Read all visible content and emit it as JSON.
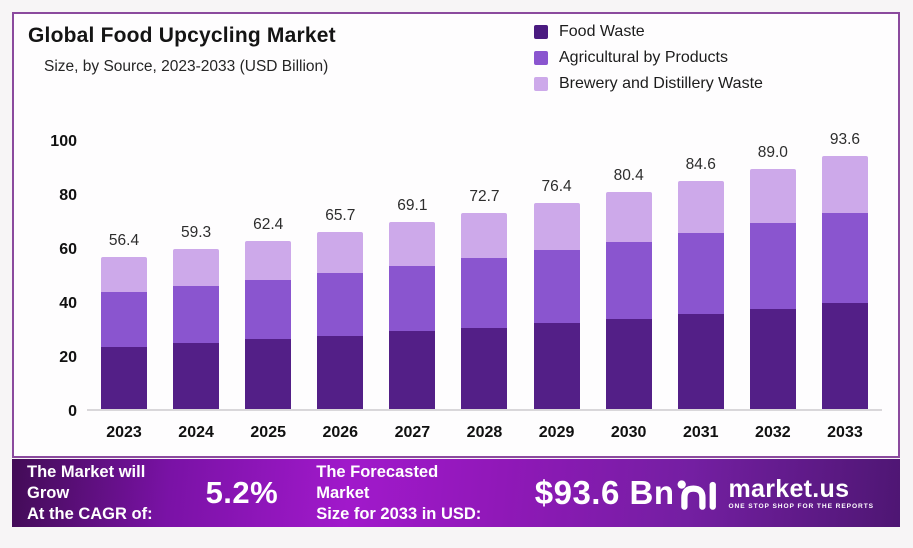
{
  "header": {
    "title": "Global Food Upcycling Market",
    "subtitle": "Size, by Source, 2023-2033 (USD Billion)"
  },
  "legend": {
    "position": "top-right",
    "items": [
      {
        "label": "Food Waste",
        "color": "#4a1a80"
      },
      {
        "label": "Agricultural by Products",
        "color": "#8a55cf"
      },
      {
        "label": "Brewery and Distillery Waste",
        "color": "#cda9ea"
      }
    ]
  },
  "chart_data": {
    "type": "bar",
    "stacked": true,
    "title": "Global Food Upcycling Market",
    "subtitle": "Size, by Source, 2023-2033 (USD Billion)",
    "unit": "USD Billion",
    "categories": [
      "2023",
      "2024",
      "2025",
      "2026",
      "2027",
      "2028",
      "2029",
      "2030",
      "2031",
      "2032",
      "2033"
    ],
    "series": [
      {
        "name": "Food Waste",
        "color": "#531f87",
        "values": [
          23.0,
          24.4,
          25.8,
          27.2,
          28.8,
          30.2,
          31.8,
          33.5,
          35.3,
          37.2,
          39.2
        ]
      },
      {
        "name": "Agricultural by Products",
        "color": "#8a55cf",
        "values": [
          20.5,
          21.1,
          22.0,
          23.1,
          24.2,
          25.6,
          27.0,
          28.5,
          29.9,
          31.6,
          33.4
        ]
      },
      {
        "name": "Brewery and Distillery Waste",
        "color": "#cda9ea",
        "values": [
          12.9,
          13.8,
          14.6,
          15.4,
          16.1,
          16.9,
          17.6,
          18.4,
          19.4,
          20.2,
          21.0
        ]
      }
    ],
    "totals": [
      56.4,
      59.3,
      62.4,
      65.7,
      69.1,
      72.7,
      76.4,
      80.4,
      84.6,
      89.0,
      93.6
    ],
    "y_axis": {
      "min": 0,
      "max": 100,
      "ticks": [
        0,
        20,
        40,
        60,
        80,
        100
      ]
    },
    "grid": false,
    "value_labels": "total-above-bar",
    "legend_position": "top-right"
  },
  "banner": {
    "growth_label_line1": "The Market will Grow",
    "growth_label_line2": "At the CAGR of:",
    "cagr_value": "5.2%",
    "forecast_label_line1": "The Forecasted Market",
    "forecast_label_line2": "Size for 2033 in USD:",
    "forecast_value": "$93.6 Bn",
    "brand": {
      "name": "market.us",
      "tagline": "ONE STOP SHOP FOR THE REPORTS"
    }
  },
  "colors": {
    "frame_border": "#8b4a9e",
    "frame_background": "#fefdfe",
    "axis_line": "#d9d7da",
    "banner_gradient_start": "#420c56",
    "banner_gradient_mid": "#a119cb",
    "banner_gradient_end": "#4e1673",
    "text_dark": "#141414",
    "text_white": "#ffffff"
  }
}
